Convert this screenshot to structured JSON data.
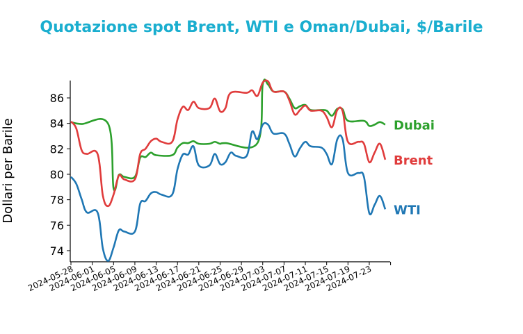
{
  "chart_data": {
    "type": "line",
    "title": "Quotazione spot Brent, WTI e Oman/Dubai, $/Barile",
    "xlabel": "",
    "ylabel": "Dollari per Barile",
    "ylim": [
      73.1,
      87.4
    ],
    "yticks": [
      74,
      76,
      78,
      80,
      82,
      84,
      86
    ],
    "start_date": "2024-05-28",
    "xticks": [
      "2024-05-28",
      "2024-06-01",
      "2024-06-05",
      "2024-06-09",
      "2024-06-13",
      "2024-06-17",
      "2024-06-21",
      "2024-06-25",
      "2024-06-29",
      "2024-07-03",
      "2024-07-07",
      "2024-07-11",
      "2024-07-15",
      "2024-07-19",
      "2024-07-23"
    ],
    "grid": false,
    "legend": "inline-right",
    "title_color": "#1aaecf",
    "series": [
      {
        "name": "Dubai",
        "color": "#2ca02c",
        "points": [
          [
            0,
            84.1
          ],
          [
            2,
            83.95
          ],
          [
            7,
            83.95
          ],
          [
            8,
            78.9
          ],
          [
            9,
            79.95
          ],
          [
            10,
            79.8
          ],
          [
            12,
            79.8
          ],
          [
            13,
            81.3
          ],
          [
            14,
            81.35
          ],
          [
            15,
            81.7
          ],
          [
            16,
            81.5
          ],
          [
            19,
            81.5
          ],
          [
            20,
            82.1
          ],
          [
            21,
            82.45
          ],
          [
            22,
            82.45
          ],
          [
            23,
            82.6
          ],
          [
            24,
            82.4
          ],
          [
            26,
            82.4
          ],
          [
            27,
            82.55
          ],
          [
            28,
            82.4
          ],
          [
            29,
            82.45
          ],
          [
            35,
            82.45
          ],
          [
            36,
            87.05
          ],
          [
            37,
            87.05
          ],
          [
            38,
            86.5
          ],
          [
            40,
            86.5
          ],
          [
            41,
            85.95
          ],
          [
            42,
            85.2
          ],
          [
            43,
            85.35
          ],
          [
            44,
            85.45
          ],
          [
            45,
            85.05
          ],
          [
            47,
            85.05
          ],
          [
            48,
            85.0
          ],
          [
            49,
            84.6
          ],
          [
            50,
            85.15
          ],
          [
            51,
            85.1
          ],
          [
            52,
            84.2
          ],
          [
            55,
            84.2
          ],
          [
            56,
            83.8
          ],
          [
            57,
            83.9
          ],
          [
            58,
            84.1
          ],
          [
            59,
            83.9
          ]
        ]
      },
      {
        "name": "Brent",
        "color": "#e03c3c",
        "points": [
          [
            0,
            84.15
          ],
          [
            1,
            83.6
          ],
          [
            2,
            81.9
          ],
          [
            3,
            81.6
          ],
          [
            5,
            81.6
          ],
          [
            6,
            78.3
          ],
          [
            7,
            77.5
          ],
          [
            8,
            78.4
          ],
          [
            9,
            79.9
          ],
          [
            10,
            79.6
          ],
          [
            12,
            79.6
          ],
          [
            13,
            81.6
          ],
          [
            14,
            82.0
          ],
          [
            15,
            82.6
          ],
          [
            16,
            82.8
          ],
          [
            17,
            82.55
          ],
          [
            19,
            82.55
          ],
          [
            20,
            84.3
          ],
          [
            21,
            85.3
          ],
          [
            22,
            85.05
          ],
          [
            23,
            85.7
          ],
          [
            24,
            85.2
          ],
          [
            26,
            85.2
          ],
          [
            27,
            85.95
          ],
          [
            28,
            84.95
          ],
          [
            29,
            85.2
          ],
          [
            30,
            86.4
          ],
          [
            33,
            86.4
          ],
          [
            34,
            86.6
          ],
          [
            35,
            86.15
          ],
          [
            36,
            87.2
          ],
          [
            37,
            87.3
          ],
          [
            38,
            86.5
          ],
          [
            40,
            86.5
          ],
          [
            41,
            85.8
          ],
          [
            42,
            84.7
          ],
          [
            43,
            85.05
          ],
          [
            44,
            85.4
          ],
          [
            45,
            85.0
          ],
          [
            47,
            85.0
          ],
          [
            48,
            84.5
          ],
          [
            49,
            83.7
          ],
          [
            50,
            85.05
          ],
          [
            51,
            84.95
          ],
          [
            52,
            82.55
          ],
          [
            54,
            82.55
          ],
          [
            55,
            82.4
          ],
          [
            56,
            80.95
          ],
          [
            57,
            81.7
          ],
          [
            58,
            82.4
          ],
          [
            59,
            81.15
          ]
        ]
      },
      {
        "name": "WTI",
        "color": "#1f77b4",
        "points": [
          [
            0,
            79.8
          ],
          [
            1,
            79.25
          ],
          [
            2,
            78.05
          ],
          [
            3,
            77.0
          ],
          [
            5,
            77.0
          ],
          [
            6,
            74.15
          ],
          [
            7,
            73.2
          ],
          [
            8,
            74.25
          ],
          [
            9,
            75.6
          ],
          [
            10,
            75.5
          ],
          [
            12,
            75.5
          ],
          [
            13,
            77.7
          ],
          [
            14,
            77.9
          ],
          [
            15,
            78.5
          ],
          [
            16,
            78.6
          ],
          [
            17,
            78.4
          ],
          [
            19,
            78.4
          ],
          [
            20,
            80.4
          ],
          [
            21,
            81.55
          ],
          [
            22,
            81.55
          ],
          [
            23,
            82.2
          ],
          [
            24,
            80.7
          ],
          [
            26,
            80.7
          ],
          [
            27,
            81.6
          ],
          [
            28,
            80.8
          ],
          [
            29,
            80.95
          ],
          [
            30,
            81.7
          ],
          [
            31,
            81.45
          ],
          [
            33,
            81.45
          ],
          [
            34,
            83.35
          ],
          [
            35,
            82.75
          ],
          [
            36,
            83.9
          ],
          [
            37,
            83.9
          ],
          [
            38,
            83.2
          ],
          [
            40,
            83.2
          ],
          [
            41,
            82.4
          ],
          [
            42,
            81.4
          ],
          [
            43,
            82.05
          ],
          [
            44,
            82.55
          ],
          [
            45,
            82.2
          ],
          [
            47,
            82.1
          ],
          [
            48,
            81.6
          ],
          [
            49,
            80.8
          ],
          [
            50,
            82.75
          ],
          [
            51,
            82.75
          ],
          [
            52,
            80.1
          ],
          [
            54,
            80.1
          ],
          [
            55,
            79.8
          ],
          [
            56,
            76.95
          ],
          [
            57,
            77.6
          ],
          [
            58,
            78.3
          ],
          [
            59,
            77.25
          ]
        ]
      }
    ]
  }
}
